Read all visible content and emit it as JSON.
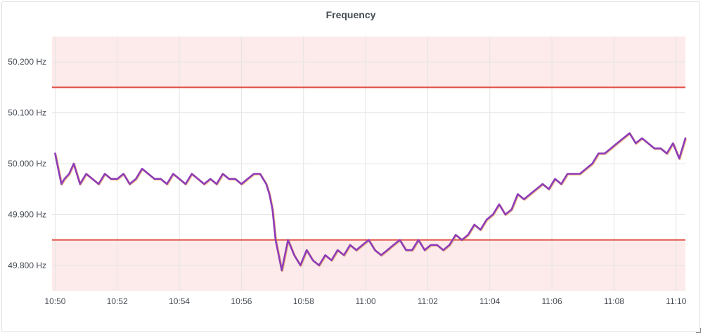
{
  "panel": {
    "title": "Frequency"
  },
  "chart_data": {
    "type": "line",
    "title": "Frequency",
    "xlabel": "",
    "ylabel": "",
    "grid": true,
    "legend": "none",
    "x_range": [
      "10:49.9",
      "11:10.3"
    ],
    "y_range": [
      49.75,
      50.25
    ],
    "x_ticks": [
      "10:50",
      "10:52",
      "10:54",
      "10:56",
      "10:58",
      "11:00",
      "11:02",
      "11:04",
      "11:06",
      "11:08",
      "11:10"
    ],
    "y_ticks": [
      {
        "value": 49.8,
        "label": "49.800 Hz"
      },
      {
        "value": 49.9,
        "label": "49.900 Hz"
      },
      {
        "value": 50.0,
        "label": "50.000 Hz"
      },
      {
        "value": 50.1,
        "label": "50.100 Hz"
      },
      {
        "value": 50.2,
        "label": "50.200 Hz"
      }
    ],
    "thresholds": [
      {
        "name": "upper",
        "value": 50.15,
        "color": "#e24d42",
        "fill": "above"
      },
      {
        "name": "lower",
        "value": 49.85,
        "color": "#e24d42",
        "fill": "below"
      }
    ],
    "series": [
      {
        "color": "#8f3bb8",
        "x_minutes": [
          0,
          0.1,
          0.2,
          0.3,
          0.45,
          0.6,
          0.8,
          1.0,
          1.2,
          1.4,
          1.6,
          1.8,
          2.0,
          2.2,
          2.4,
          2.6,
          2.8,
          3.0,
          3.2,
          3.4,
          3.6,
          3.8,
          4.0,
          4.2,
          4.4,
          4.6,
          4.8,
          5.0,
          5.2,
          5.4,
          5.6,
          5.8,
          6.0,
          6.2,
          6.4,
          6.6,
          6.8,
          6.9,
          7.0,
          7.1,
          7.2,
          7.3,
          7.5,
          7.7,
          7.9,
          8.1,
          8.3,
          8.5,
          8.7,
          8.9,
          9.1,
          9.3,
          9.5,
          9.7,
          9.9,
          10.1,
          10.3,
          10.5,
          10.7,
          10.9,
          11.1,
          11.3,
          11.5,
          11.7,
          11.9,
          12.1,
          12.3,
          12.5,
          12.7,
          12.9,
          13.1,
          13.3,
          13.5,
          13.7,
          13.9,
          14.1,
          14.3,
          14.5,
          14.7,
          14.9,
          15.1,
          15.3,
          15.5,
          15.7,
          15.9,
          16.1,
          16.3,
          16.5,
          16.7,
          16.9,
          17.1,
          17.3,
          17.5,
          17.7,
          17.9,
          18.1,
          18.3,
          18.5,
          18.7,
          18.9,
          19.1,
          19.3,
          19.5,
          19.7,
          19.9,
          20.1,
          20.3
        ],
        "y_hz": [
          50.02,
          49.99,
          49.96,
          49.97,
          49.98,
          50.0,
          49.96,
          49.98,
          49.97,
          49.96,
          49.98,
          49.97,
          49.97,
          49.98,
          49.96,
          49.97,
          49.99,
          49.98,
          49.97,
          49.97,
          49.96,
          49.98,
          49.97,
          49.96,
          49.98,
          49.97,
          49.96,
          49.97,
          49.96,
          49.98,
          49.97,
          49.97,
          49.96,
          49.97,
          49.98,
          49.98,
          49.96,
          49.94,
          49.91,
          49.85,
          49.82,
          49.79,
          49.85,
          49.82,
          49.8,
          49.83,
          49.81,
          49.8,
          49.82,
          49.81,
          49.83,
          49.82,
          49.84,
          49.83,
          49.84,
          49.85,
          49.83,
          49.82,
          49.83,
          49.84,
          49.85,
          49.83,
          49.83,
          49.85,
          49.83,
          49.84,
          49.84,
          49.83,
          49.84,
          49.86,
          49.85,
          49.86,
          49.88,
          49.87,
          49.89,
          49.9,
          49.92,
          49.9,
          49.91,
          49.94,
          49.93,
          49.94,
          49.95,
          49.96,
          49.95,
          49.97,
          49.96,
          49.98,
          49.98,
          49.98,
          49.99,
          50.0,
          50.02,
          50.02,
          50.03,
          50.04,
          50.05,
          50.06,
          50.04,
          50.05,
          50.04,
          50.03,
          50.03,
          50.02,
          50.04,
          50.01,
          50.05
        ]
      }
    ]
  }
}
